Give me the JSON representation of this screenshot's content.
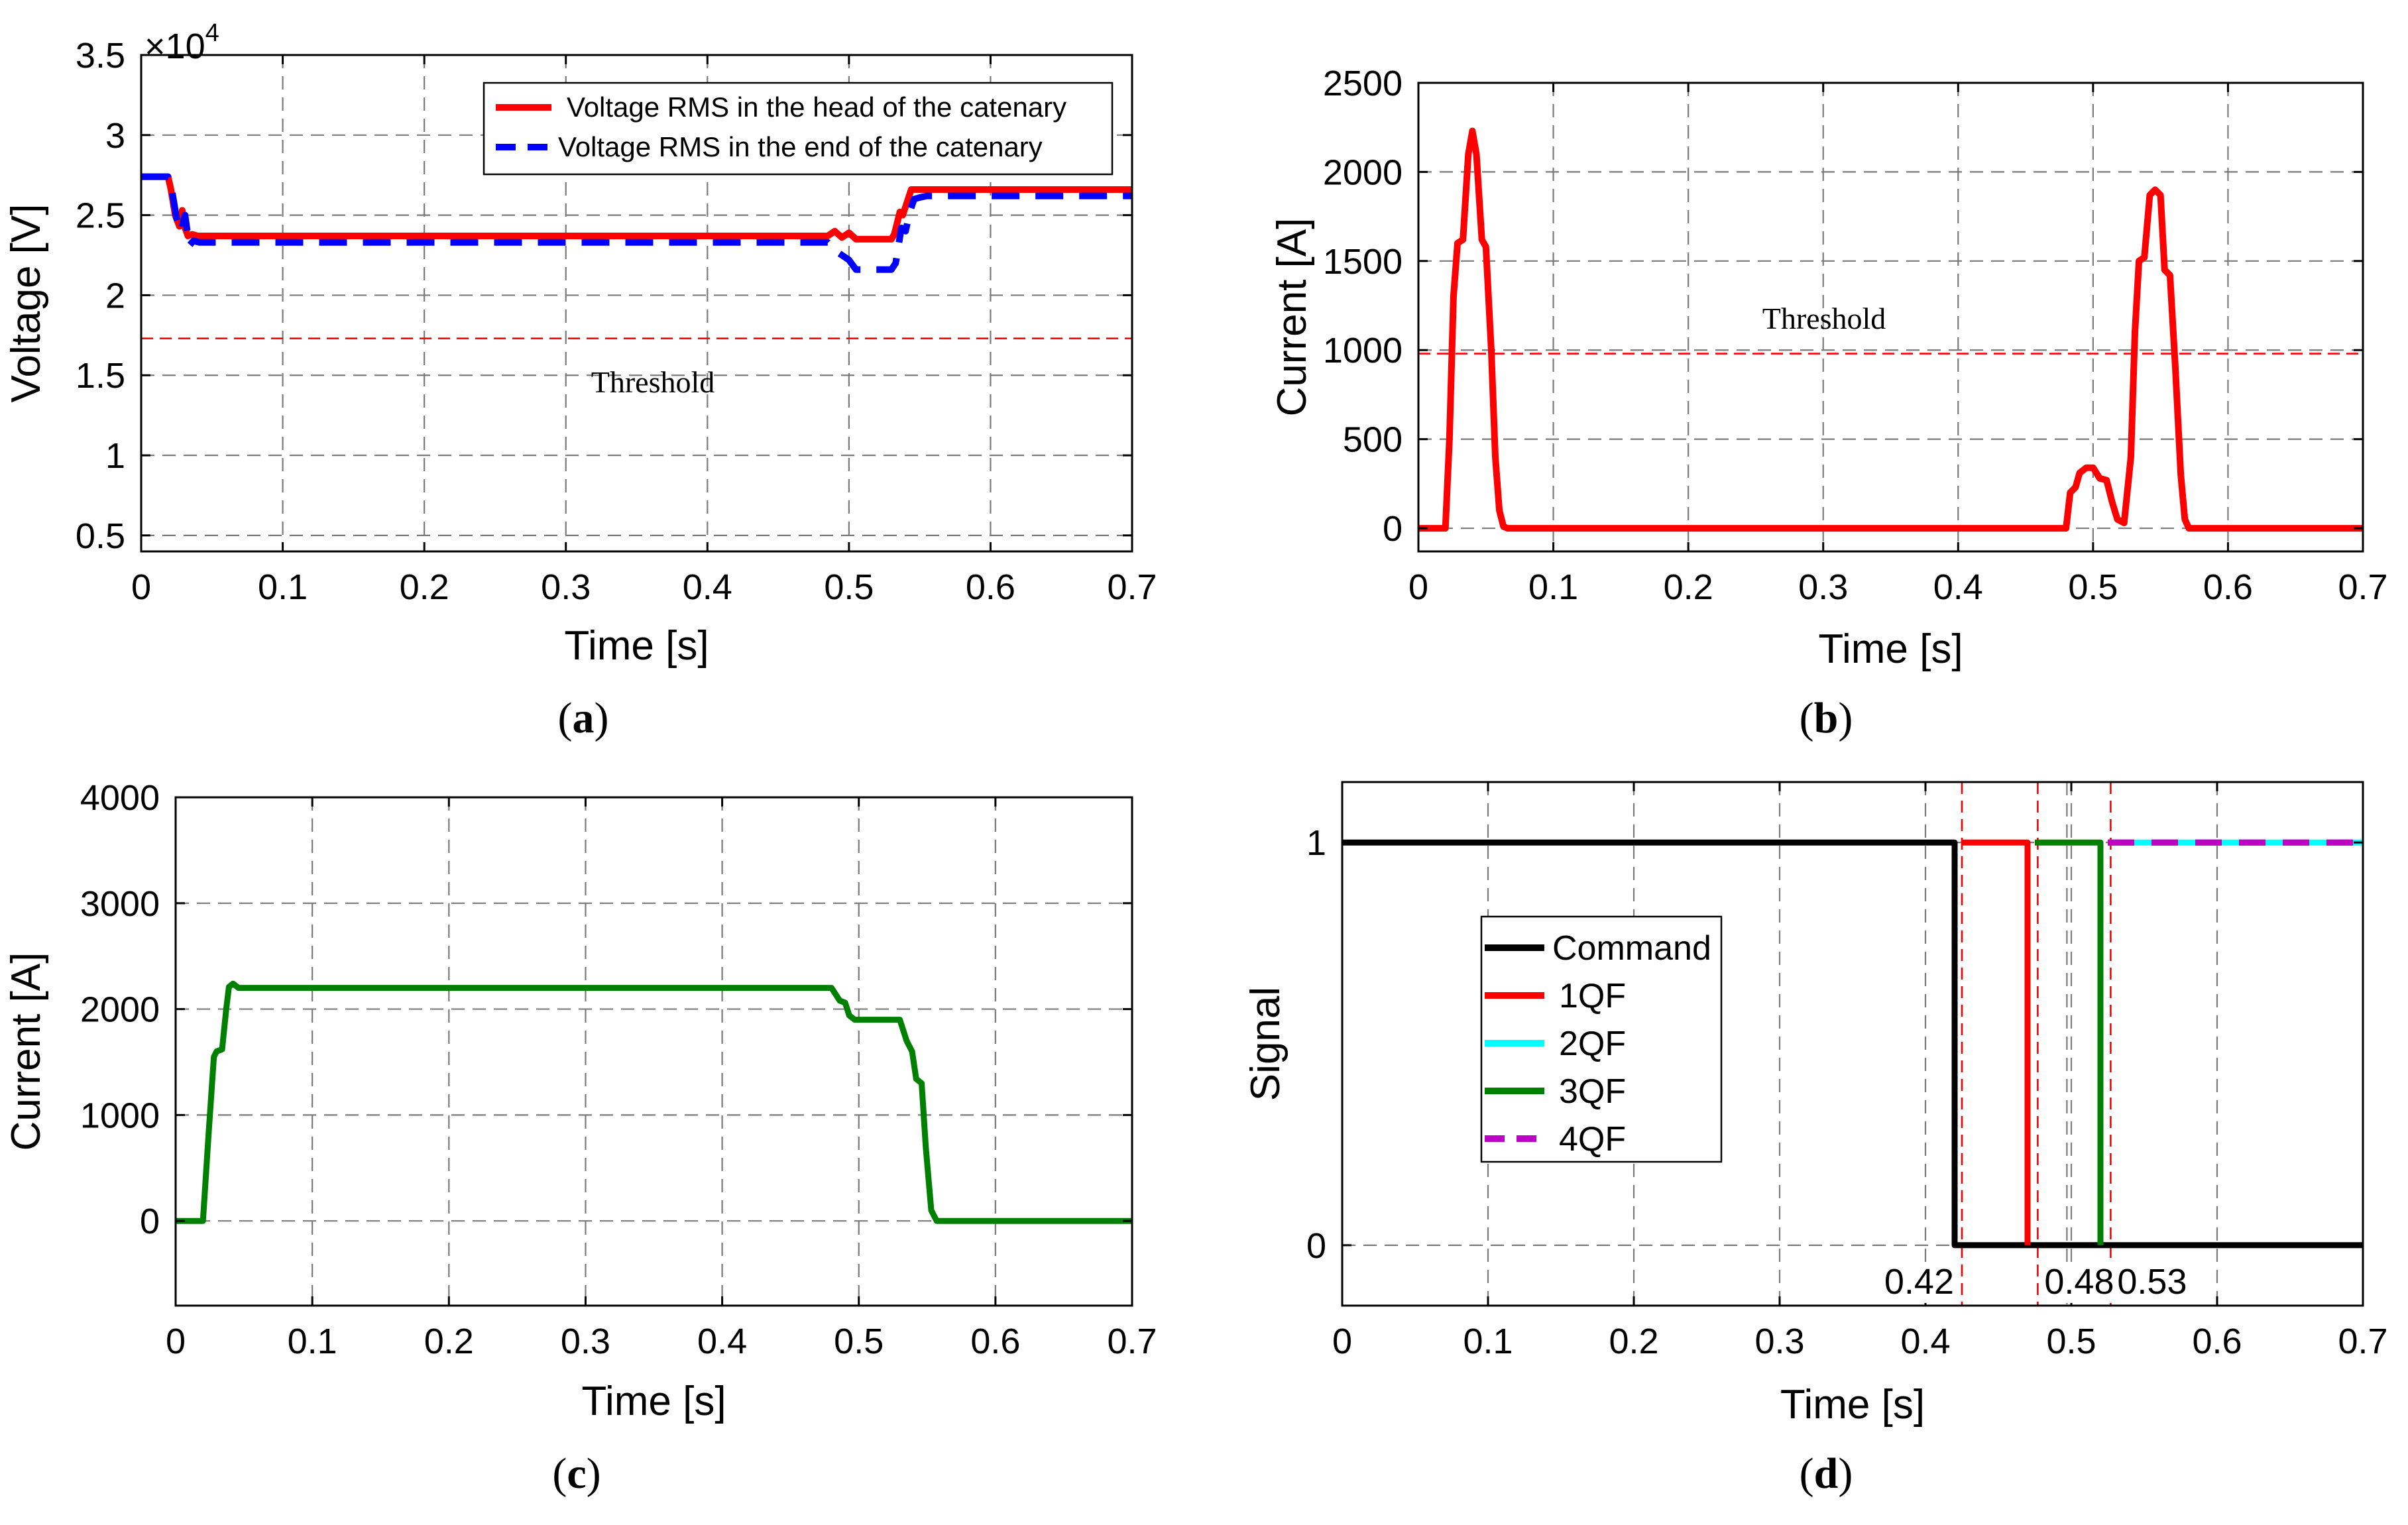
{
  "panels": [
    {
      "id": "a",
      "caption_letter": "a",
      "xlabel": "Time [s]",
      "ylabel": "Voltage [V]",
      "exponent_label": "×10",
      "exponent_power": "4",
      "xlim": [
        0,
        0.7
      ],
      "ylim": [
        0.4,
        3.5
      ],
      "xticks": [
        0,
        0.1,
        0.2,
        0.3,
        0.4,
        0.5,
        0.6,
        0.7
      ],
      "xtick_labels": [
        "0",
        "0.1",
        "0.2",
        "0.3",
        "0.4",
        "0.5",
        "0.6",
        "0.7"
      ],
      "yticks": [
        0.5,
        1,
        1.5,
        2,
        2.5,
        3,
        3.5
      ],
      "ytick_labels": [
        "0.5",
        "1",
        "1.5",
        "2",
        "2.5",
        "3",
        "3.5"
      ],
      "annotation": "Threshold"
    },
    {
      "id": "b",
      "caption_letter": "b",
      "xlabel": "Time [s]",
      "ylabel": "Current [A]",
      "xlim": [
        0,
        0.7
      ],
      "ylim": [
        -130,
        2500
      ],
      "xticks": [
        0,
        0.1,
        0.2,
        0.3,
        0.4,
        0.5,
        0.6,
        0.7
      ],
      "xtick_labels": [
        "0",
        "0.1",
        "0.2",
        "0.3",
        "0.4",
        "0.5",
        "0.6",
        "0.7"
      ],
      "yticks": [
        0,
        500,
        1000,
        1500,
        2000,
        2500
      ],
      "ytick_labels": [
        "0",
        "500",
        "1000",
        "1500",
        "2000",
        "2500"
      ],
      "annotation": "Threshold"
    },
    {
      "id": "c",
      "caption_letter": "c",
      "xlabel": "Time [s]",
      "ylabel": "Current [A]",
      "xlim": [
        0,
        0.7
      ],
      "ylim": [
        -800,
        4000
      ],
      "xticks": [
        0,
        0.1,
        0.2,
        0.3,
        0.4,
        0.5,
        0.6,
        0.7
      ],
      "xtick_labels": [
        "0",
        "0.1",
        "0.2",
        "0.3",
        "0.4",
        "0.5",
        "0.6",
        "0.7"
      ],
      "yticks": [
        0,
        1000,
        2000,
        3000,
        4000
      ],
      "ytick_labels": [
        "0",
        "1000",
        "2000",
        "3000",
        "4000"
      ]
    },
    {
      "id": "d",
      "caption_letter": "d",
      "xlabel": "Time [s]",
      "ylabel": "Signal",
      "xlim": [
        0,
        0.7
      ],
      "ylim": [
        -0.15,
        1.15
      ],
      "xticks": [
        0,
        0.1,
        0.2,
        0.3,
        0.4,
        0.5,
        0.6,
        0.7
      ],
      "xtick_labels": [
        "0",
        "0.1",
        "0.2",
        "0.3",
        "0.4",
        "0.5",
        "0.6",
        "0.7"
      ],
      "yticks": [
        0,
        1
      ],
      "ytick_labels": [
        "0",
        "1"
      ],
      "markers": [
        {
          "x": 0.425,
          "label": "0.42"
        },
        {
          "x": 0.477,
          "label": "0.48"
        },
        {
          "x": 0.527,
          "label": "0.53"
        }
      ],
      "extra_vline": 0.497
    }
  ],
  "chart_data": [
    {
      "panel": "a",
      "type": "line",
      "title": "",
      "xlabel": "Time [s]",
      "ylabel": "Voltage [V]",
      "y_scale_note": "×10^4",
      "xlim": [
        0,
        0.7
      ],
      "ylim": [
        0.4,
        3.5
      ],
      "grid": true,
      "legend_position": "top-right",
      "series": [
        {
          "name": "Voltage RMS in the head of the catenary",
          "color": "#ff0000",
          "dash": "solid",
          "x": [
            0,
            0.019,
            0.021,
            0.024,
            0.027,
            0.029,
            0.031,
            0.033,
            0.036,
            0.04,
            0.045,
            0.1,
            0.2,
            0.3,
            0.4,
            0.485,
            0.49,
            0.495,
            0.5,
            0.505,
            0.53,
            0.532,
            0.536,
            0.538,
            0.541,
            0.544,
            0.548,
            0.552,
            0.6,
            0.7
          ],
          "y": [
            2.74,
            2.74,
            2.66,
            2.5,
            2.43,
            2.53,
            2.42,
            2.37,
            2.38,
            2.37,
            2.37,
            2.37,
            2.37,
            2.37,
            2.37,
            2.37,
            2.4,
            2.36,
            2.39,
            2.35,
            2.35,
            2.38,
            2.52,
            2.5,
            2.58,
            2.66,
            2.66,
            2.66,
            2.66,
            2.66
          ]
        },
        {
          "name": "Voltage RMS in the end of the catenary",
          "color": "#0000ff",
          "dash": "dashed",
          "x": [
            0,
            0.019,
            0.022,
            0.025,
            0.028,
            0.031,
            0.034,
            0.037,
            0.041,
            0.045,
            0.1,
            0.2,
            0.3,
            0.4,
            0.485,
            0.49,
            0.495,
            0.5,
            0.505,
            0.53,
            0.533,
            0.537,
            0.54,
            0.543,
            0.546,
            0.55,
            0.555,
            0.6,
            0.7
          ],
          "y": [
            2.74,
            2.74,
            2.64,
            2.48,
            2.4,
            2.5,
            2.31,
            2.34,
            2.33,
            2.33,
            2.33,
            2.33,
            2.33,
            2.33,
            2.33,
            2.28,
            2.25,
            2.22,
            2.16,
            2.16,
            2.2,
            2.42,
            2.4,
            2.52,
            2.6,
            2.61,
            2.62,
            2.62,
            2.62
          ]
        }
      ],
      "threshold": {
        "y": 1.73,
        "label": "Threshold",
        "color": "#ff0000"
      }
    },
    {
      "panel": "b",
      "type": "line",
      "title": "",
      "xlabel": "Time [s]",
      "ylabel": "Current [A]",
      "xlim": [
        0,
        0.7
      ],
      "ylim": [
        -130,
        2500
      ],
      "grid": true,
      "series": [
        {
          "name": "Current",
          "color": "#ff0000",
          "dash": "solid",
          "x": [
            0,
            0.02,
            0.023,
            0.026,
            0.029,
            0.033,
            0.037,
            0.04,
            0.043,
            0.047,
            0.05,
            0.054,
            0.057,
            0.06,
            0.063,
            0.066,
            0.1,
            0.2,
            0.3,
            0.4,
            0.48,
            0.483,
            0.487,
            0.49,
            0.495,
            0.5,
            0.505,
            0.51,
            0.514,
            0.518,
            0.523,
            0.528,
            0.531,
            0.534,
            0.538,
            0.542,
            0.546,
            0.55,
            0.553,
            0.557,
            0.561,
            0.565,
            0.568,
            0.571,
            0.6,
            0.7
          ],
          "y": [
            0,
            0,
            500,
            1300,
            1600,
            1620,
            2100,
            2230,
            2100,
            1620,
            1580,
            1000,
            400,
            100,
            10,
            0,
            0,
            0,
            0,
            0,
            0,
            200,
            230,
            310,
            340,
            340,
            280,
            270,
            150,
            50,
            30,
            400,
            1100,
            1500,
            1520,
            1870,
            1900,
            1870,
            1450,
            1420,
            900,
            300,
            50,
            0,
            0,
            0
          ]
        }
      ],
      "threshold": {
        "y": 980,
        "label": "Threshold",
        "color": "#ff0000"
      }
    },
    {
      "panel": "c",
      "type": "line",
      "title": "",
      "xlabel": "Time [s]",
      "ylabel": "Current [A]",
      "xlim": [
        0,
        0.7
      ],
      "ylim": [
        -800,
        4000
      ],
      "grid": true,
      "series": [
        {
          "name": "Current",
          "color": "#008000",
          "dash": "solid",
          "x": [
            0,
            0.02,
            0.024,
            0.028,
            0.03,
            0.034,
            0.037,
            0.039,
            0.042,
            0.046,
            0.05,
            0.1,
            0.2,
            0.3,
            0.4,
            0.48,
            0.486,
            0.49,
            0.493,
            0.497,
            0.5,
            0.51,
            0.53,
            0.535,
            0.539,
            0.542,
            0.546,
            0.549,
            0.553,
            0.557,
            0.6,
            0.7
          ],
          "y": [
            0,
            0,
            800,
            1550,
            1600,
            1620,
            2000,
            2210,
            2240,
            2200,
            2200,
            2200,
            2200,
            2200,
            2200,
            2200,
            2080,
            2060,
            1940,
            1900,
            1900,
            1900,
            1900,
            1700,
            1600,
            1340,
            1300,
            700,
            100,
            0,
            0,
            0
          ]
        }
      ]
    },
    {
      "panel": "d",
      "type": "line",
      "title": "",
      "xlabel": "Time [s]",
      "ylabel": "Signal",
      "xlim": [
        0,
        0.7
      ],
      "ylim": [
        -0.15,
        1.15
      ],
      "grid": true,
      "legend_position": "center-left",
      "series": [
        {
          "name": "Command",
          "color": "#000000",
          "dash": "solid",
          "x": [
            0,
            0.42,
            0.42,
            0.7
          ],
          "y": [
            1,
            1,
            0,
            0
          ]
        },
        {
          "name": "1QF",
          "color": "#ff0000",
          "dash": "solid",
          "x": [
            0.425,
            0.47,
            0.47
          ],
          "y": [
            1,
            1,
            0
          ]
        },
        {
          "name": "2QF",
          "color": "#00ffff",
          "dash": "solid",
          "x": [
            0.525,
            0.7
          ],
          "y": [
            1,
            1
          ]
        },
        {
          "name": "3QF",
          "color": "#008000",
          "dash": "solid",
          "x": [
            0.475,
            0.52,
            0.52
          ],
          "y": [
            1,
            1,
            0
          ]
        },
        {
          "name": "4QF",
          "color": "#c000c0",
          "dash": "dashed",
          "x": [
            0.525,
            0.7
          ],
          "y": [
            1,
            1
          ]
        }
      ],
      "markers": [
        {
          "x": 0.425,
          "label": "0.42"
        },
        {
          "x": 0.477,
          "label": "0.48"
        },
        {
          "x": 0.527,
          "label": "0.53"
        }
      ]
    }
  ]
}
